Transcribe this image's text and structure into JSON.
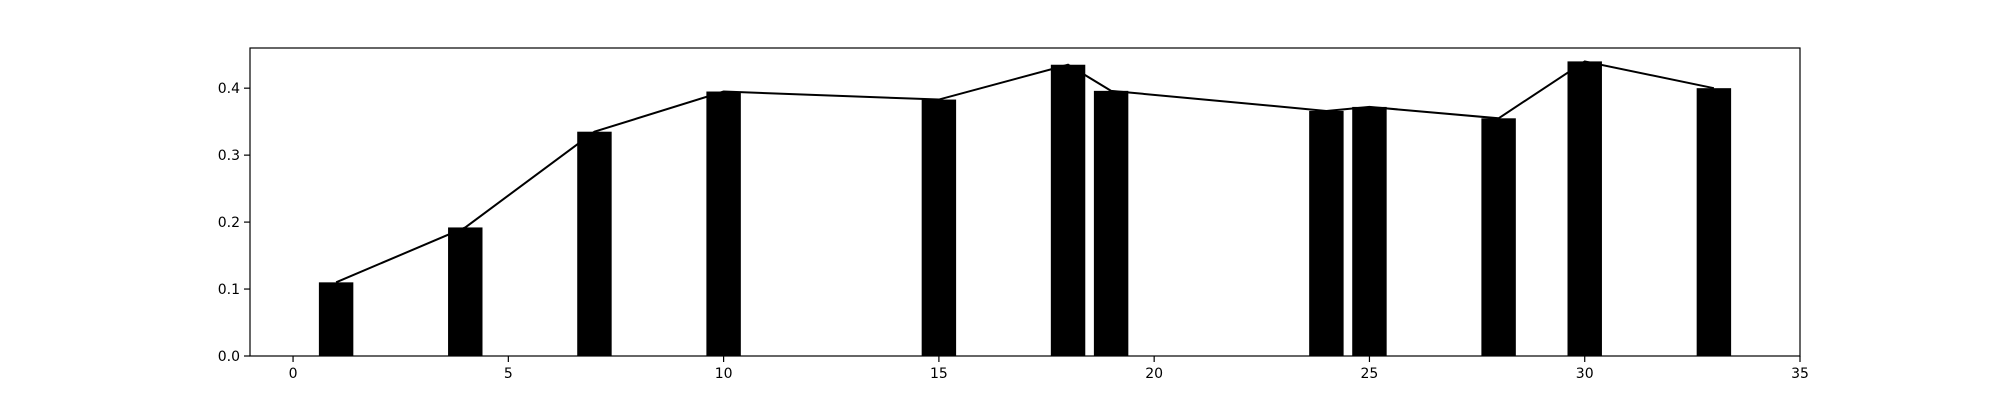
{
  "chart_data": {
    "type": "bar",
    "title": "",
    "xlabel": "",
    "ylabel": "",
    "xlim": [
      -1,
      35
    ],
    "ylim": [
      0,
      0.46
    ],
    "xticks": [
      0,
      5,
      10,
      15,
      20,
      25,
      30,
      35
    ],
    "yticks": [
      0.0,
      0.1,
      0.2,
      0.3,
      0.4
    ],
    "xtick_labels": [
      "0",
      "5",
      "10",
      "15",
      "20",
      "25",
      "30",
      "35"
    ],
    "ytick_labels": [
      "0.0",
      "0.1",
      "0.2",
      "0.3",
      "0.4"
    ],
    "grid": false,
    "bar_color": "#000000",
    "line_color": "#000000",
    "bar_width": 0.8,
    "series": [
      {
        "type": "bar",
        "x": [
          1,
          4,
          7,
          10,
          15,
          18,
          19,
          24,
          25,
          28,
          30,
          33
        ],
        "values": [
          0.11,
          0.192,
          0.335,
          0.395,
          0.383,
          0.435,
          0.396,
          0.366,
          0.372,
          0.355,
          0.44,
          0.4
        ]
      },
      {
        "type": "line",
        "x": [
          1,
          4,
          7,
          10,
          15,
          18,
          19,
          24,
          25,
          28,
          30,
          33
        ],
        "values": [
          0.11,
          0.192,
          0.335,
          0.395,
          0.383,
          0.435,
          0.396,
          0.366,
          0.372,
          0.355,
          0.44,
          0.4
        ]
      }
    ]
  }
}
